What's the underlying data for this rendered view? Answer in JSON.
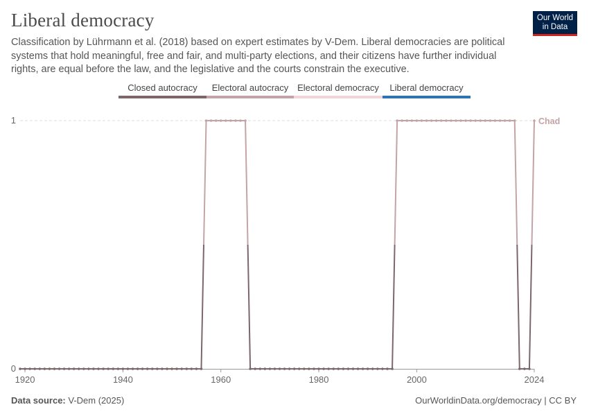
{
  "title": "Liberal democracy",
  "subtitle": "Classification by Lührmann et al. (2018) based on expert estimates by V-Dem. Liberal democracies are political systems that hold meaningful, free and fair, and multi-party elections, and their citizens have further individual rights, are equal before the law, and the legislative and the courts constrain the executive.",
  "logo": {
    "line1": "Our World",
    "line2": "in Data"
  },
  "legend": [
    {
      "label": "Closed autocracy",
      "color": "#7d6669"
    },
    {
      "label": "Electoral autocracy",
      "color": "#c4a3a6"
    },
    {
      "label": "Electoral democracy",
      "color": "#f3d4d7"
    },
    {
      "label": "Liberal democracy",
      "color": "#2e74b5"
    }
  ],
  "footer": {
    "source_label": "Data source:",
    "source_value": "V-Dem (2025)",
    "credit": "OurWorldinData.org/democracy | CC BY"
  },
  "chart_data": {
    "type": "line",
    "title": "Liberal democracy",
    "xlabel": "",
    "ylabel": "",
    "xlim": [
      1919,
      2024
    ],
    "ylim": [
      0,
      1
    ],
    "x_ticks": [
      1920,
      1940,
      1960,
      1980,
      2000,
      2024
    ],
    "y_ticks": [
      0,
      1
    ],
    "grid": "horizontal dashed",
    "series": [
      {
        "name": "Chad",
        "color_low": "#7d6669",
        "color_high": "#c4a3a6",
        "segments": [
          {
            "from": 1919,
            "to": 1956,
            "value": 0
          },
          {
            "from": 1957,
            "to": 1965,
            "value": 1
          },
          {
            "from": 1966,
            "to": 1995,
            "value": 0
          },
          {
            "from": 1996,
            "to": 2020,
            "value": 1
          },
          {
            "from": 2021,
            "to": 2023,
            "value": 0
          },
          {
            "from": 2024,
            "to": 2024,
            "value": 1
          }
        ]
      }
    ]
  }
}
